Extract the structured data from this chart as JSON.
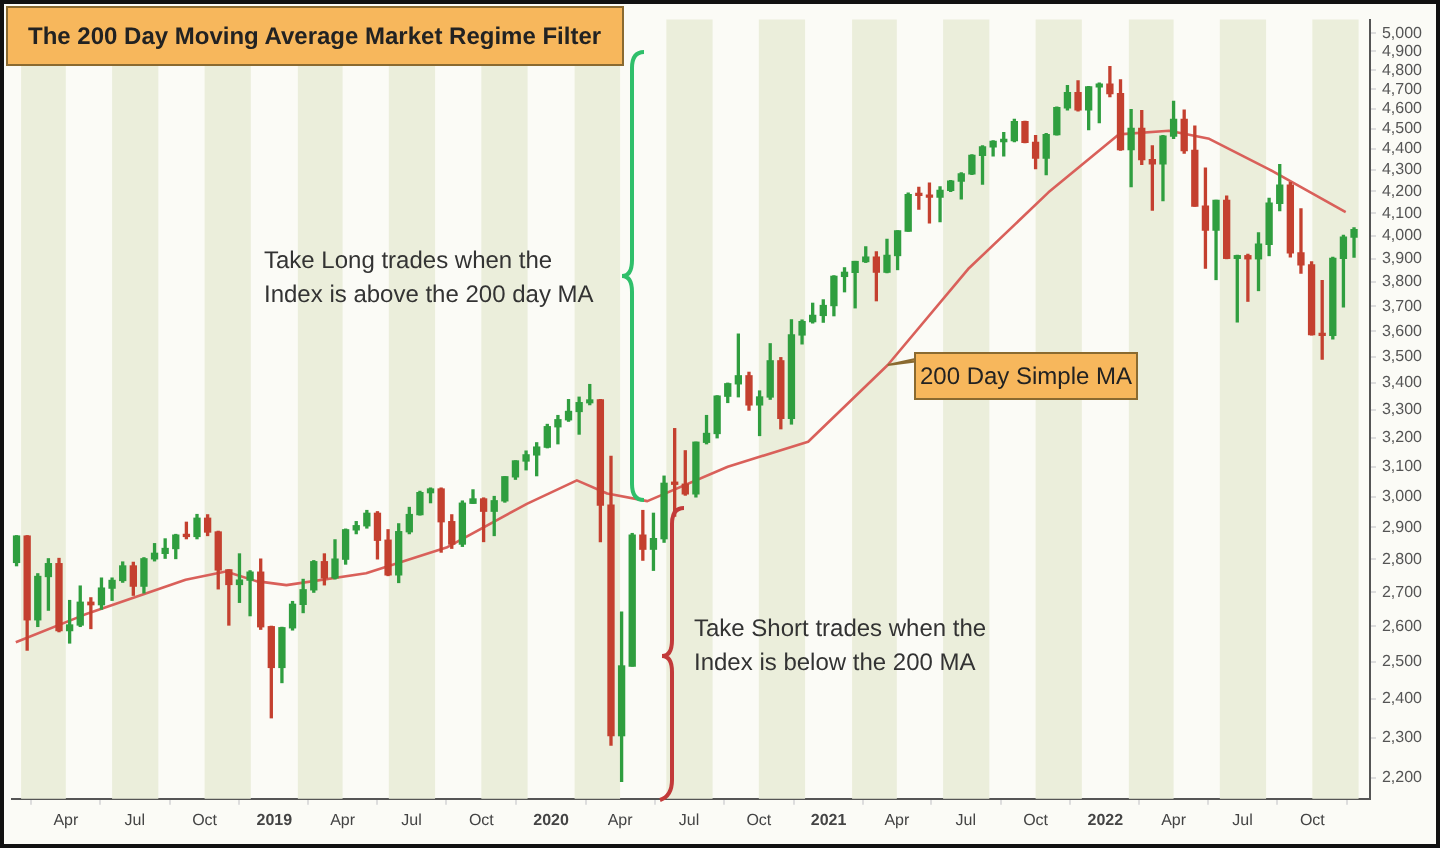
{
  "chart_data": {
    "type": "candlestick",
    "title": "The 200 Day Moving Average Market Regime Filter",
    "annotations": [
      "Take Long trades when the Index is above the 200 day MA",
      "Take Short trades when the Index is below the 200 MA"
    ],
    "x": [
      "2018-01-26",
      "2018-02-09",
      "2018-02-23",
      "2018-03-09",
      "2018-03-23",
      "2018-04-06",
      "2018-04-20",
      "2018-05-04",
      "2018-05-18",
      "2018-06-01",
      "2018-06-15",
      "2018-06-29",
      "2018-07-13",
      "2018-07-27",
      "2018-08-10",
      "2018-08-24",
      "2018-09-07",
      "2018-09-21",
      "2018-10-05",
      "2018-10-19",
      "2018-11-02",
      "2018-11-16",
      "2018-11-30",
      "2018-12-14",
      "2018-12-28",
      "2019-01-11",
      "2019-01-25",
      "2019-02-08",
      "2019-02-22",
      "2019-03-08",
      "2019-03-22",
      "2019-04-05",
      "2019-04-19",
      "2019-05-03",
      "2019-05-17",
      "2019-05-31",
      "2019-06-14",
      "2019-06-28",
      "2019-07-12",
      "2019-07-26",
      "2019-08-09",
      "2019-08-23",
      "2019-09-06",
      "2019-09-20",
      "2019-10-04",
      "2019-10-18",
      "2019-11-01",
      "2019-11-15",
      "2019-11-29",
      "2019-12-13",
      "2019-12-27",
      "2020-01-10",
      "2020-01-24",
      "2020-02-07",
      "2020-02-21",
      "2020-03-06",
      "2020-03-20",
      "2020-04-03",
      "2020-04-17",
      "2020-05-01",
      "2020-05-15",
      "2020-05-29",
      "2020-06-12",
      "2020-06-26",
      "2020-07-10",
      "2020-07-24",
      "2020-08-07",
      "2020-08-21",
      "2020-09-04",
      "2020-09-18",
      "2020-10-02",
      "2020-10-16",
      "2020-10-30",
      "2020-11-13",
      "2020-11-27",
      "2020-12-11",
      "2020-12-25",
      "2021-01-08",
      "2021-01-22",
      "2021-02-05",
      "2021-02-19",
      "2021-03-05",
      "2021-03-19",
      "2021-04-02",
      "2021-04-16",
      "2021-04-30",
      "2021-05-14",
      "2021-05-28",
      "2021-06-11",
      "2021-06-25",
      "2021-07-09",
      "2021-07-23",
      "2021-08-06",
      "2021-08-20",
      "2021-09-03",
      "2021-09-17",
      "2021-10-01",
      "2021-10-15",
      "2021-10-29",
      "2021-11-12",
      "2021-11-26",
      "2021-12-10",
      "2021-12-24",
      "2022-01-07",
      "2022-01-21",
      "2022-02-04",
      "2022-02-18",
      "2022-03-04",
      "2022-03-18",
      "2022-04-01",
      "2022-04-15",
      "2022-04-29",
      "2022-05-13",
      "2022-05-27",
      "2022-06-10",
      "2022-06-24",
      "2022-07-08",
      "2022-07-22",
      "2022-08-05",
      "2022-08-19",
      "2022-09-02",
      "2022-09-16",
      "2022-09-30",
      "2022-10-14",
      "2022-10-28",
      "2022-11-11",
      "2022-11-25"
    ],
    "ohlc": [
      [
        2790,
        2873,
        2780,
        2872
      ],
      [
        2872,
        2873,
        2533,
        2619
      ],
      [
        2619,
        2755,
        2600,
        2747
      ],
      [
        2747,
        2801,
        2647,
        2786
      ],
      [
        2786,
        2802,
        2585,
        2588
      ],
      [
        2588,
        2675,
        2553,
        2604
      ],
      [
        2604,
        2718,
        2600,
        2670
      ],
      [
        2670,
        2683,
        2594,
        2663
      ],
      [
        2663,
        2742,
        2650,
        2712
      ],
      [
        2712,
        2742,
        2676,
        2735
      ],
      [
        2735,
        2791,
        2730,
        2779
      ],
      [
        2779,
        2790,
        2691,
        2718
      ],
      [
        2718,
        2804,
        2698,
        2801
      ],
      [
        2801,
        2848,
        2795,
        2818
      ],
      [
        2818,
        2863,
        2803,
        2833
      ],
      [
        2833,
        2877,
        2802,
        2875
      ],
      [
        2875,
        2916,
        2864,
        2871
      ],
      [
        2871,
        2941,
        2864,
        2929
      ],
      [
        2929,
        2940,
        2874,
        2885
      ],
      [
        2885,
        2887,
        2710,
        2767
      ],
      [
        2767,
        2767,
        2604,
        2723
      ],
      [
        2723,
        2816,
        2670,
        2736
      ],
      [
        2736,
        2764,
        2631,
        2760
      ],
      [
        2760,
        2800,
        2592,
        2599
      ],
      [
        2599,
        2600,
        2351,
        2485
      ],
      [
        2485,
        2597,
        2444,
        2596
      ],
      [
        2596,
        2672,
        2590,
        2664
      ],
      [
        2664,
        2738,
        2640,
        2707
      ],
      [
        2707,
        2795,
        2700,
        2792
      ],
      [
        2792,
        2816,
        2722,
        2743
      ],
      [
        2743,
        2860,
        2740,
        2800
      ],
      [
        2800,
        2894,
        2785,
        2892
      ],
      [
        2892,
        2918,
        2880,
        2905
      ],
      [
        2905,
        2954,
        2898,
        2945
      ],
      [
        2945,
        2950,
        2801,
        2859
      ],
      [
        2859,
        2892,
        2750,
        2752
      ],
      [
        2752,
        2911,
        2729,
        2886
      ],
      [
        2886,
        2964,
        2880,
        2941
      ],
      [
        2941,
        3017,
        2940,
        3013
      ],
      [
        3013,
        3028,
        2980,
        3025
      ],
      [
        3025,
        3028,
        2822,
        2918
      ],
      [
        2918,
        2940,
        2834,
        2847
      ],
      [
        2847,
        2985,
        2840,
        2978
      ],
      [
        2978,
        3022,
        2978,
        2992
      ],
      [
        2992,
        2995,
        2855,
        2952
      ],
      [
        2952,
        3000,
        2874,
        2986
      ],
      [
        2986,
        3066,
        2982,
        3066
      ],
      [
        3066,
        3120,
        3058,
        3120
      ],
      [
        3120,
        3154,
        3090,
        3141
      ],
      [
        3141,
        3183,
        3070,
        3168
      ],
      [
        3168,
        3248,
        3166,
        3240
      ],
      [
        3240,
        3280,
        3180,
        3265
      ],
      [
        3265,
        3338,
        3260,
        3295
      ],
      [
        3295,
        3347,
        3214,
        3327
      ],
      [
        3327,
        3394,
        3320,
        3337
      ],
      [
        3337,
        3338,
        2855,
        2972
      ],
      [
        2972,
        3136,
        2281,
        2305
      ],
      [
        2305,
        2641,
        2192,
        2489
      ],
      [
        2489,
        2880,
        2489,
        2875
      ],
      [
        2875,
        2954,
        2797,
        2831
      ],
      [
        2831,
        2945,
        2766,
        2864
      ],
      [
        2864,
        3068,
        2853,
        3044
      ],
      [
        3044,
        3233,
        2936,
        3041
      ],
      [
        3041,
        3155,
        3005,
        3009
      ],
      [
        3009,
        3185,
        2999,
        3185
      ],
      [
        3185,
        3280,
        3180,
        3216
      ],
      [
        3216,
        3352,
        3201,
        3351
      ],
      [
        3351,
        3399,
        3328,
        3397
      ],
      [
        3397,
        3588,
        3349,
        3427
      ],
      [
        3427,
        3440,
        3300,
        3319
      ],
      [
        3319,
        3370,
        3209,
        3348
      ],
      [
        3348,
        3550,
        3340,
        3484
      ],
      [
        3484,
        3496,
        3233,
        3270
      ],
      [
        3270,
        3645,
        3250,
        3585
      ],
      [
        3585,
        3644,
        3550,
        3638
      ],
      [
        3638,
        3712,
        3633,
        3663
      ],
      [
        3663,
        3726,
        3636,
        3703
      ],
      [
        3703,
        3826,
        3662,
        3824
      ],
      [
        3824,
        3860,
        3760,
        3841
      ],
      [
        3841,
        3887,
        3694,
        3887
      ],
      [
        3887,
        3950,
        3884,
        3906
      ],
      [
        3906,
        3929,
        3723,
        3842
      ],
      [
        3842,
        3983,
        3840,
        3913
      ],
      [
        3913,
        4020,
        3853,
        4020
      ],
      [
        4020,
        4191,
        4020,
        4185
      ],
      [
        4185,
        4218,
        4118,
        4181
      ],
      [
        4181,
        4238,
        4056,
        4173
      ],
      [
        4173,
        4220,
        4062,
        4204
      ],
      [
        4204,
        4250,
        4200,
        4247
      ],
      [
        4247,
        4286,
        4165,
        4281
      ],
      [
        4281,
        4372,
        4279,
        4370
      ],
      [
        4370,
        4415,
        4233,
        4411
      ],
      [
        4411,
        4440,
        4367,
        4437
      ],
      [
        4437,
        4480,
        4367,
        4442
      ],
      [
        4442,
        4546,
        4437,
        4535
      ],
      [
        4535,
        4536,
        4432,
        4433
      ],
      [
        4433,
        4466,
        4306,
        4357
      ],
      [
        4357,
        4475,
        4278,
        4471
      ],
      [
        4471,
        4608,
        4470,
        4605
      ],
      [
        4605,
        4718,
        4595,
        4682
      ],
      [
        4682,
        4743,
        4590,
        4595
      ],
      [
        4595,
        4713,
        4495,
        4712
      ],
      [
        4712,
        4731,
        4531,
        4726
      ],
      [
        4726,
        4818,
        4662,
        4677
      ],
      [
        4677,
        4749,
        4395,
        4398
      ],
      [
        4398,
        4595,
        4222,
        4501
      ],
      [
        4501,
        4590,
        4327,
        4349
      ],
      [
        4349,
        4416,
        4114,
        4329
      ],
      [
        4329,
        4465,
        4157,
        4463
      ],
      [
        4463,
        4637,
        4452,
        4546
      ],
      [
        4546,
        4593,
        4381,
        4393
      ],
      [
        4393,
        4513,
        4132,
        4132
      ],
      [
        4132,
        4308,
        3859,
        4024
      ],
      [
        4024,
        4158,
        3811,
        4158
      ],
      [
        4158,
        4178,
        3900,
        3901
      ],
      [
        3901,
        3913,
        3637,
        3912
      ],
      [
        3912,
        3918,
        3721,
        3899
      ],
      [
        3899,
        4012,
        3765,
        3962
      ],
      [
        3962,
        4167,
        3913,
        4145
      ],
      [
        4145,
        4325,
        4112,
        4228
      ],
      [
        4228,
        4240,
        3907,
        3924
      ],
      [
        3924,
        4119,
        3838,
        3873
      ],
      [
        3873,
        3886,
        3585,
        3586
      ],
      [
        3586,
        3806,
        3491,
        3583
      ],
      [
        3583,
        3905,
        3570,
        3901
      ],
      [
        3901,
        4001,
        3698,
        3993
      ],
      [
        3993,
        4034,
        3906,
        4026
      ]
    ],
    "series": [
      {
        "type": "line",
        "name": "200 Day Simple MA",
        "color": "#d9605a",
        "x": [
          "2018-01-25",
          "2018-04-26",
          "2018-09-06",
          "2018-10-29",
          "2018-12-08",
          "2019-01-17",
          "2019-05-02",
          "2019-08-16",
          "2019-11-30",
          "2020-02-04",
          "2020-03-15",
          "2020-05-07",
          "2020-08-21",
          "2020-12-05",
          "2021-03-20",
          "2021-07-04",
          "2021-10-18",
          "2022-01-19",
          "2022-03-26",
          "2022-05-18",
          "2022-08-05",
          "2022-11-14"
        ],
        "values": [
          2555,
          2634,
          2737,
          2762,
          2733,
          2721,
          2757,
          2836,
          2976,
          3054,
          3010,
          2985,
          3100,
          3187,
          3468,
          3855,
          4195,
          4472,
          4490,
          4450,
          4303,
          4105
        ]
      }
    ],
    "xlim": [
      "2018-01-20",
      "2022-12-16"
    ],
    "xticks": [
      {
        "value": "2018-04-01",
        "label": "Apr"
      },
      {
        "value": "2018-07-01",
        "label": "Jul"
      },
      {
        "value": "2018-10-01",
        "label": "Oct"
      },
      {
        "value": "2019-01-01",
        "label": "2019"
      },
      {
        "value": "2019-04-01",
        "label": "Apr"
      },
      {
        "value": "2019-07-01",
        "label": "Jul"
      },
      {
        "value": "2019-10-01",
        "label": "Oct"
      },
      {
        "value": "2020-01-01",
        "label": "2020"
      },
      {
        "value": "2020-04-01",
        "label": "Apr"
      },
      {
        "value": "2020-07-01",
        "label": "Jul"
      },
      {
        "value": "2020-10-01",
        "label": "Oct"
      },
      {
        "value": "2021-01-01",
        "label": "2021"
      },
      {
        "value": "2021-04-01",
        "label": "Apr"
      },
      {
        "value": "2021-07-01",
        "label": "Jul"
      },
      {
        "value": "2021-10-01",
        "label": "Oct"
      },
      {
        "value": "2022-01-01",
        "label": "2022"
      },
      {
        "value": "2022-04-01",
        "label": "Apr"
      },
      {
        "value": "2022-07-01",
        "label": "Jul"
      },
      {
        "value": "2022-10-01",
        "label": "Oct"
      }
    ],
    "ylim": [
      2150,
      5075
    ],
    "log": true,
    "yticks": [
      {
        "value": 2200,
        "label": "2,200"
      },
      {
        "value": 2300,
        "label": "2,300"
      },
      {
        "value": 2400,
        "label": "2,400"
      },
      {
        "value": 2500,
        "label": "2,500"
      },
      {
        "value": 2600,
        "label": "2,600"
      },
      {
        "value": 2700,
        "label": "2,700"
      },
      {
        "value": 2800,
        "label": "2,800"
      },
      {
        "value": 2900,
        "label": "2,900"
      },
      {
        "value": 3000,
        "label": "3,000"
      },
      {
        "value": 3100,
        "label": "3,100"
      },
      {
        "value": 3200,
        "label": "3,200"
      },
      {
        "value": 3300,
        "label": "3,300"
      },
      {
        "value": 3400,
        "label": "3,400"
      },
      {
        "value": 3500,
        "label": "3,500"
      },
      {
        "value": 3600,
        "label": "3,600"
      },
      {
        "value": 3700,
        "label": "3,700"
      },
      {
        "value": 3800,
        "label": "3,800"
      },
      {
        "value": 3900,
        "label": "3,900"
      },
      {
        "value": 4000,
        "label": "4,000"
      },
      {
        "value": 4100,
        "label": "4,100"
      },
      {
        "value": 4200,
        "label": "4,200"
      },
      {
        "value": 4300,
        "label": "4,300"
      },
      {
        "value": 4400,
        "label": "4,400"
      },
      {
        "value": 4500,
        "label": "4,500"
      },
      {
        "value": 4600,
        "label": "4,600"
      },
      {
        "value": 4700,
        "label": "4,700"
      },
      {
        "value": 4800,
        "label": "4,800"
      },
      {
        "value": 4900,
        "label": "4,900"
      },
      {
        "value": 5000,
        "label": "5,000"
      }
    ],
    "bands": [
      {
        "axis": "x",
        "from": "2018-02-01",
        "to": "2018-04-01",
        "color": "#ebeedb"
      },
      {
        "axis": "x",
        "from": "2018-06-01",
        "to": "2018-08-01",
        "color": "#ebeedb"
      },
      {
        "axis": "x",
        "from": "2018-10-01",
        "to": "2018-12-01",
        "color": "#ebeedb"
      },
      {
        "axis": "x",
        "from": "2019-02-01",
        "to": "2019-04-01",
        "color": "#ebeedb"
      },
      {
        "axis": "x",
        "from": "2019-06-01",
        "to": "2019-08-01",
        "color": "#ebeedb"
      },
      {
        "axis": "x",
        "from": "2019-10-01",
        "to": "2019-12-01",
        "color": "#ebeedb"
      },
      {
        "axis": "x",
        "from": "2020-02-01",
        "to": "2020-04-01",
        "color": "#ebeedb"
      },
      {
        "axis": "x",
        "from": "2020-06-01",
        "to": "2020-08-01",
        "color": "#ebeedb"
      },
      {
        "axis": "x",
        "from": "2020-10-01",
        "to": "2020-12-01",
        "color": "#ebeedb"
      },
      {
        "axis": "x",
        "from": "2021-02-01",
        "to": "2021-04-01",
        "color": "#ebeedb"
      },
      {
        "axis": "x",
        "from": "2021-06-01",
        "to": "2021-08-01",
        "color": "#ebeedb"
      },
      {
        "axis": "x",
        "from": "2021-10-01",
        "to": "2021-12-01",
        "color": "#ebeedb"
      },
      {
        "axis": "x",
        "from": "2022-02-01",
        "to": "2022-04-01",
        "color": "#ebeedb"
      },
      {
        "axis": "x",
        "from": "2022-06-01",
        "to": "2022-08-01",
        "color": "#ebeedb"
      },
      {
        "axis": "x",
        "from": "2022-10-01",
        "to": "2022-12-01",
        "color": "#ebeedb"
      }
    ],
    "grid": false,
    "legend": false,
    "marker": "none"
  }
}
